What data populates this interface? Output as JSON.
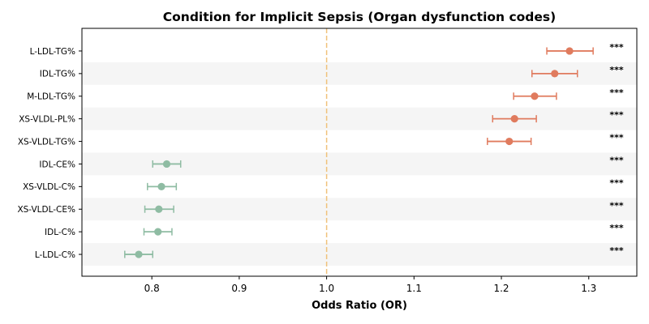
{
  "chart_data": {
    "type": "forest",
    "title": "Condition for Implicit Sepsis (Organ dysfunction codes)",
    "xlabel": "Odds Ratio (OR)",
    "ylabel": "",
    "xlim": [
      0.72,
      1.355
    ],
    "xticks": [
      0.8,
      0.9,
      1.0,
      1.1,
      1.2,
      1.3
    ],
    "reference_line": 1.0,
    "colors": {
      "positive": "#e07b5e",
      "negative": "#8fbca3",
      "reference": "#f0c27b",
      "band": "#f5f5f5"
    },
    "rows": [
      {
        "label": "L-LDL-TG%",
        "or": 1.278,
        "lo": 1.252,
        "hi": 1.305,
        "sig": "***"
      },
      {
        "label": "IDL-TG%",
        "or": 1.261,
        "lo": 1.235,
        "hi": 1.287,
        "sig": "***"
      },
      {
        "label": "M-LDL-TG%",
        "or": 1.238,
        "lo": 1.214,
        "hi": 1.263,
        "sig": "***"
      },
      {
        "label": "XS-VLDL-PL%",
        "or": 1.215,
        "lo": 1.19,
        "hi": 1.24,
        "sig": "***"
      },
      {
        "label": "XS-VLDL-TG%",
        "or": 1.209,
        "lo": 1.184,
        "hi": 1.234,
        "sig": "***"
      },
      {
        "label": "IDL-CE%",
        "or": 0.817,
        "lo": 0.801,
        "hi": 0.833,
        "sig": "***"
      },
      {
        "label": "XS-VLDL-C%",
        "or": 0.811,
        "lo": 0.795,
        "hi": 0.828,
        "sig": "***"
      },
      {
        "label": "XS-VLDL-CE%",
        "or": 0.808,
        "lo": 0.792,
        "hi": 0.825,
        "sig": "***"
      },
      {
        "label": "IDL-C%",
        "or": 0.807,
        "lo": 0.791,
        "hi": 0.823,
        "sig": "***"
      },
      {
        "label": "L-LDL-C%",
        "or": 0.785,
        "lo": 0.769,
        "hi": 0.801,
        "sig": "***"
      }
    ]
  }
}
